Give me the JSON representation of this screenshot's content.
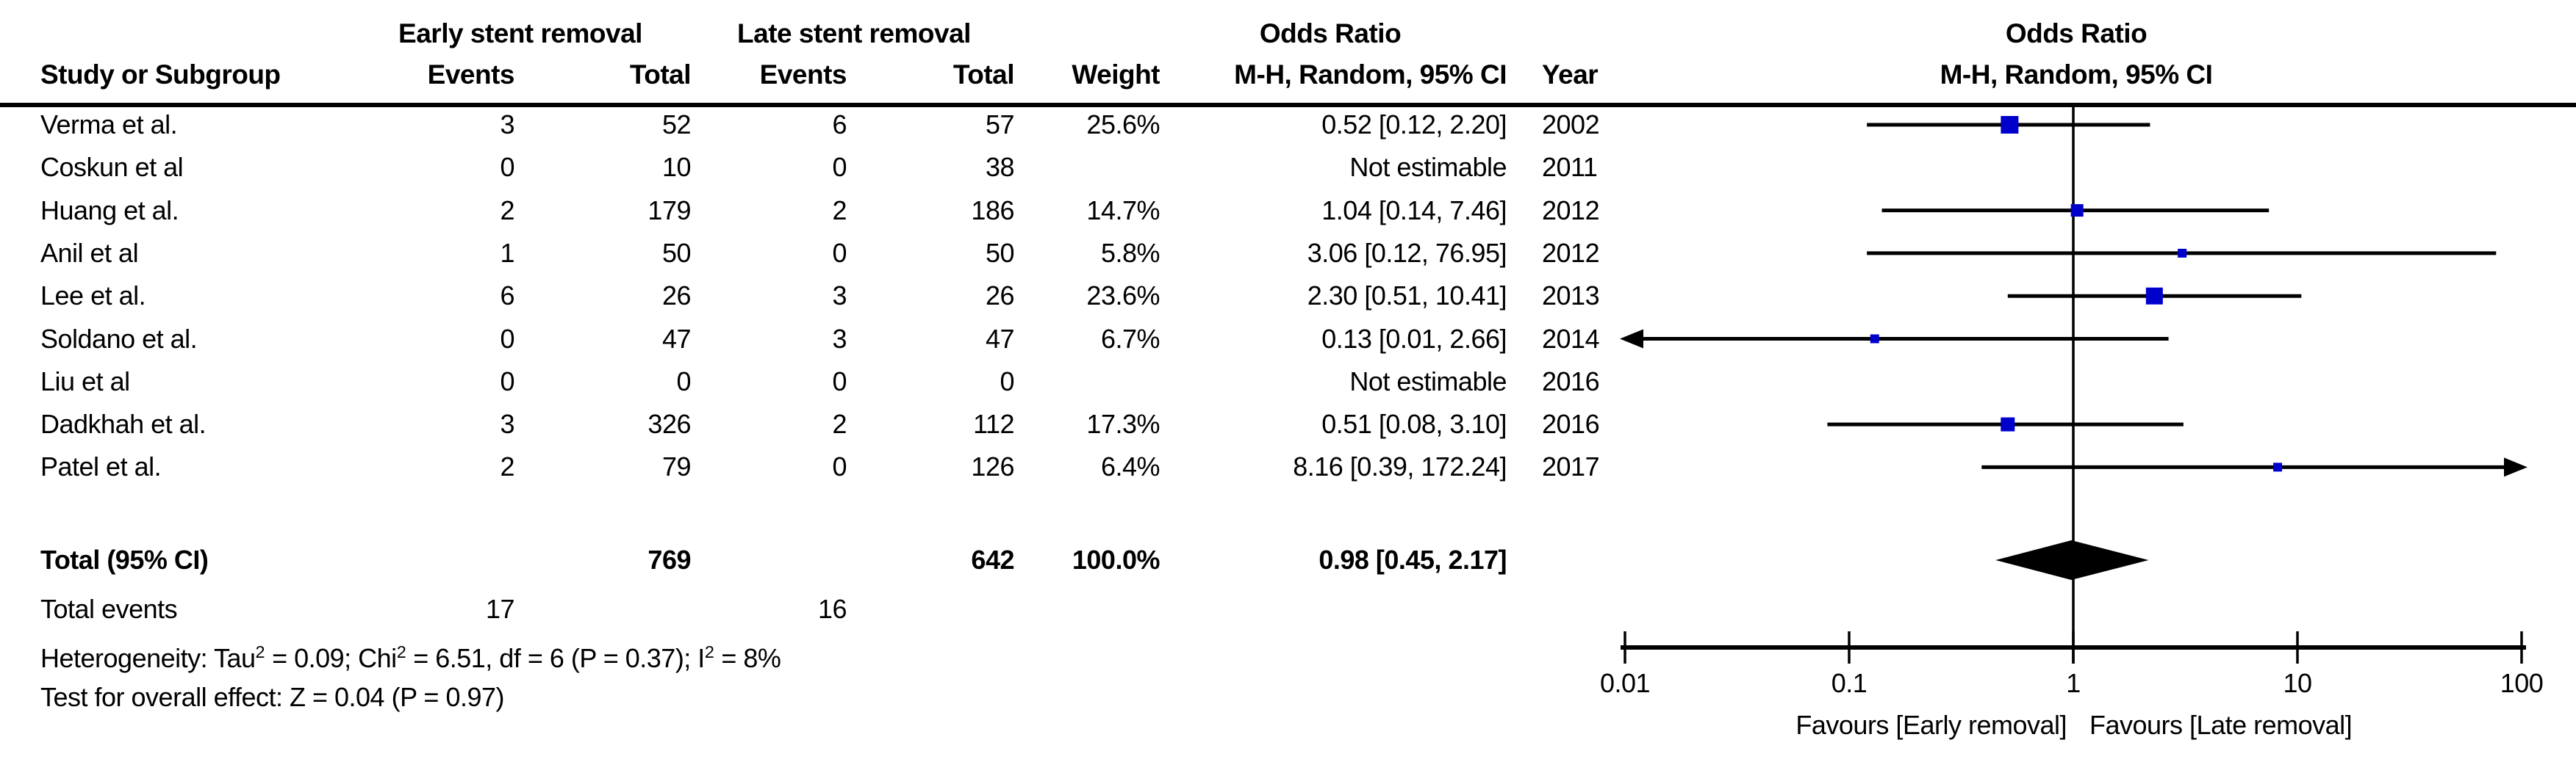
{
  "headers": {
    "group_early": "Early stent removal",
    "group_late": "Late stent removal",
    "group_or_left": "Odds Ratio",
    "col_study": "Study or Subgroup",
    "col_events_early": "Events",
    "col_total_early": "Total",
    "col_events_late": "Events",
    "col_total_late": "Total",
    "col_weight": "Weight",
    "col_ci": "M-H, Random, 95% CI",
    "col_year": "Year",
    "plot_title_line1": "Odds Ratio",
    "plot_title_line2": "M-H, Random, 95% CI"
  },
  "chart_data": {
    "type": "forest",
    "effect_measure": "Odds Ratio",
    "model": "M-H, Random, 95% CI",
    "x_scale": "log10",
    "x_ticks": [
      0.01,
      0.1,
      1,
      10,
      100
    ],
    "x_tick_labels": [
      "0.01",
      "0.1",
      "1",
      "10",
      "100"
    ],
    "favours_left": "Favours [Early removal]",
    "favours_right": "Favours [Late removal]",
    "marker_color": "#0000CD",
    "studies": [
      {
        "name": "Verma et al.",
        "events_early": "3",
        "total_early": "52",
        "events_late": "6",
        "total_late": "57",
        "weight": "25.6%",
        "ci_text": "0.52 [0.12, 2.20]",
        "year": "2002",
        "or": 0.52,
        "ci_low": 0.12,
        "ci_high": 2.2,
        "weight_pct": 25.6
      },
      {
        "name": "Coskun et al",
        "events_early": "0",
        "total_early": "10",
        "events_late": "0",
        "total_late": "38",
        "weight": "",
        "ci_text": "Not estimable",
        "year": "2011",
        "or": null,
        "ci_low": null,
        "ci_high": null,
        "weight_pct": 0
      },
      {
        "name": "Huang et al.",
        "events_early": "2",
        "total_early": "179",
        "events_late": "2",
        "total_late": "186",
        "weight": "14.7%",
        "ci_text": "1.04 [0.14, 7.46]",
        "year": "2012",
        "or": 1.04,
        "ci_low": 0.14,
        "ci_high": 7.46,
        "weight_pct": 14.7
      },
      {
        "name": "Anil et al",
        "events_early": "1",
        "total_early": "50",
        "events_late": "0",
        "total_late": "50",
        "weight": "5.8%",
        "ci_text": "3.06 [0.12, 76.95]",
        "year": "2012",
        "or": 3.06,
        "ci_low": 0.12,
        "ci_high": 76.95,
        "weight_pct": 5.8
      },
      {
        "name": "Lee et al.",
        "events_early": "6",
        "total_early": "26",
        "events_late": "3",
        "total_late": "26",
        "weight": "23.6%",
        "ci_text": "2.30 [0.51, 10.41]",
        "year": "2013",
        "or": 2.3,
        "ci_low": 0.51,
        "ci_high": 10.41,
        "weight_pct": 23.6
      },
      {
        "name": "Soldano et al.",
        "events_early": "0",
        "total_early": "47",
        "events_late": "3",
        "total_late": "47",
        "weight": "6.7%",
        "ci_text": "0.13 [0.01, 2.66]",
        "year": "2014",
        "or": 0.13,
        "ci_low": 0.01,
        "ci_high": 2.66,
        "weight_pct": 6.7,
        "arrow_left": true
      },
      {
        "name": "Liu et al",
        "events_early": "0",
        "total_early": "0",
        "events_late": "0",
        "total_late": "0",
        "weight": "",
        "ci_text": "Not estimable",
        "year": "2016",
        "or": null,
        "ci_low": null,
        "ci_high": null,
        "weight_pct": 0
      },
      {
        "name": "Dadkhah et al.",
        "events_early": "3",
        "total_early": "326",
        "events_late": "2",
        "total_late": "112",
        "weight": "17.3%",
        "ci_text": "0.51 [0.08, 3.10]",
        "year": "2016",
        "or": 0.51,
        "ci_low": 0.08,
        "ci_high": 3.1,
        "weight_pct": 17.3
      },
      {
        "name": "Patel et al.",
        "events_early": "2",
        "total_early": "79",
        "events_late": "0",
        "total_late": "126",
        "weight": "6.4%",
        "ci_text": "8.16 [0.39, 172.24]",
        "year": "2017",
        "or": 8.16,
        "ci_low": 0.39,
        "ci_high": 172.24,
        "weight_pct": 6.4,
        "arrow_right": true
      }
    ],
    "total": {
      "label": "Total (95% CI)",
      "total_early": "769",
      "total_late": "642",
      "weight": "100.0%",
      "ci_text": "0.98 [0.45, 2.17]",
      "or": 0.98,
      "ci_low": 0.45,
      "ci_high": 2.17
    }
  },
  "footer": {
    "total_events_label": "Total events",
    "total_events_early": "17",
    "total_events_late": "16",
    "heterogeneity_parts": [
      {
        "text": "Heterogeneity: Tau"
      },
      {
        "sup": "2"
      },
      {
        "text": " = 0.09; Chi"
      },
      {
        "sup": "2"
      },
      {
        "text": " = 6.51, df = 6 (P = 0.37); I"
      },
      {
        "sup": "2"
      },
      {
        "text": " = 8%"
      }
    ],
    "overall_effect": "Test for overall effect: Z = 0.04 (P = 0.97)"
  }
}
